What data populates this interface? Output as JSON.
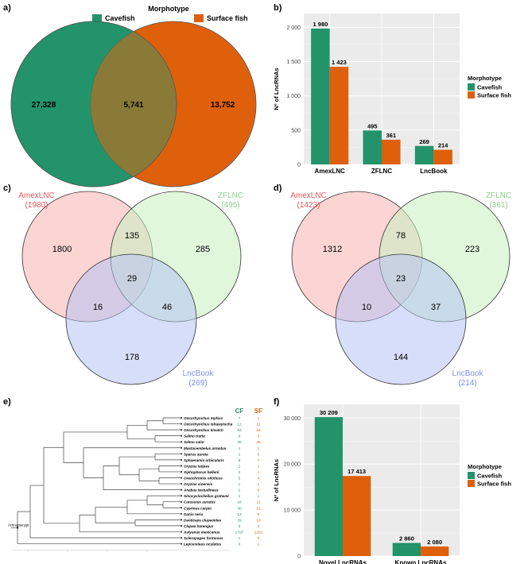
{
  "panels": {
    "a": "a)",
    "b": "b)",
    "c": "c)",
    "d": "d)",
    "e": "e)",
    "f": "f)"
  },
  "colors": {
    "cavefish": "#23936b",
    "surface": "#de600a",
    "overlap": "#8a7a38",
    "amex": "#f7b0b0",
    "zflnc": "#c6f0c0",
    "lncbook": "#b7c3f4",
    "amex_label": "#e8595a",
    "zflnc_label": "#8fd28d",
    "lncbook_label": "#7d8fe6",
    "cf_col": "#23936b",
    "sf_col": "#de600a"
  },
  "chart_data": [
    {
      "panel": "a",
      "type": "venn",
      "legend_title": "Morphotype",
      "sets": [
        "Cavefish",
        "Surface fish"
      ],
      "only_a": "27,328",
      "both": "5,741",
      "only_b": "13,752"
    },
    {
      "panel": "b",
      "type": "bar",
      "ylabel": "Nº of LncRNAs",
      "ylim": [
        0,
        2200
      ],
      "yticks": [
        0,
        500,
        1000,
        1500,
        2000
      ],
      "ytick_labels": [
        "0",
        "500",
        "1 000",
        "1 500",
        "2 000"
      ],
      "categories": [
        "AmexLNC",
        "ZFLNC",
        "LncBook"
      ],
      "series": [
        {
          "name": "Cavefish",
          "values": [
            1980,
            495,
            269
          ],
          "labels": [
            "1 980",
            "495",
            "269"
          ]
        },
        {
          "name": "Surface fish",
          "values": [
            1423,
            361,
            214
          ],
          "labels": [
            "1 423",
            "361",
            "214"
          ]
        }
      ],
      "legend_title": "Morphotype",
      "legend_position": "right"
    },
    {
      "panel": "c",
      "type": "venn3",
      "sets": [
        {
          "name": "AmexLNC",
          "count": "(1980)"
        },
        {
          "name": "ZFLNC",
          "count": "(495)"
        },
        {
          "name": "LncBook",
          "count": "(269)"
        }
      ],
      "regions": {
        "a": "1800",
        "ab": "135",
        "b": "285",
        "abc": "29",
        "ac": "16",
        "bc": "46",
        "c": "178"
      }
    },
    {
      "panel": "d",
      "type": "venn3",
      "sets": [
        {
          "name": "AmexLNC",
          "count": "(1423)"
        },
        {
          "name": "ZFLNC",
          "count": "(361)"
        },
        {
          "name": "LncBook",
          "count": "(214)"
        }
      ],
      "regions": {
        "a": "1312",
        "ab": "78",
        "b": "223",
        "abc": "23",
        "ac": "10",
        "bc": "37",
        "c": "144"
      }
    },
    {
      "panel": "e",
      "type": "table",
      "columns": [
        "CF",
        "SF"
      ],
      "species": [
        {
          "name": "Oncorhynchus mykiss",
          "cf": "7",
          "sf": "1"
        },
        {
          "name": "Oncorhynchus tshawytscha",
          "cf": "12",
          "sf": "11"
        },
        {
          "name": "Oncorhynchus kisutch",
          "cf": "53",
          "sf": "44"
        },
        {
          "name": "Salmo trutta",
          "cf": "4",
          "sf": "3"
        },
        {
          "name": "Salmo salar",
          "cf": "36",
          "sf": "35"
        },
        {
          "name": "Mastacembelus armatus",
          "cf": "1",
          "sf": "1"
        },
        {
          "name": "Sparus aurata",
          "cf": "1",
          "sf": "0"
        },
        {
          "name": "Sphaeramia orbicularis",
          "cf": "8",
          "sf": "7"
        },
        {
          "name": "Oryzias latipes",
          "cf": "2",
          "sf": "1"
        },
        {
          "name": "Xiphophorus hellerii",
          "cf": "2",
          "sf": "1"
        },
        {
          "name": "Oreochromis niloticus",
          "cf": "5",
          "sf": "4"
        },
        {
          "name": "Oryzias sinensis",
          "cf": "1",
          "sf": "1"
        },
        {
          "name": "Anabas testudineus",
          "cf": "1",
          "sf": "0"
        },
        {
          "name": "Sinocyclocheilus grahami",
          "cf": "1",
          "sf": "1"
        },
        {
          "name": "Carassius auratus",
          "cf": "18",
          "sf": "11"
        },
        {
          "name": "Cyprinus carpio",
          "cf": "30",
          "sf": "21"
        },
        {
          "name": "Danio rerio",
          "cf": "13",
          "sf": "6"
        },
        {
          "name": "Denticeps clupeoides",
          "cf": "29",
          "sf": "19"
        },
        {
          "name": "Clupea harengus",
          "cf": "3",
          "sf": "3"
        },
        {
          "name": "Astyanax mexicanus",
          "cf": "1797",
          "sf": "1291"
        },
        {
          "name": "Scleropages formosus",
          "cf": "1",
          "sf": "0"
        },
        {
          "name": "Lepisosteus oculatus",
          "cf": "0",
          "sf": "1"
        }
      ],
      "root_label": "Actinopterygii"
    },
    {
      "panel": "f",
      "type": "bar",
      "ylabel": "Nº of LncRNAs",
      "ylim": [
        0,
        33000
      ],
      "yticks": [
        0,
        10000,
        20000,
        30000
      ],
      "ytick_labels": [
        "0",
        "10 000",
        "20 000",
        "30 000"
      ],
      "categories": [
        "Novel LncRNAs",
        "Known LncRNAs"
      ],
      "series": [
        {
          "name": "Cavefish",
          "values": [
            30209,
            2860
          ],
          "labels": [
            "30 209",
            "2 860"
          ]
        },
        {
          "name": "Surface fish",
          "values": [
            17413,
            2080
          ],
          "labels": [
            "17 413",
            "2 080"
          ]
        }
      ],
      "legend_title": "Morphotype",
      "legend_position": "right"
    }
  ]
}
